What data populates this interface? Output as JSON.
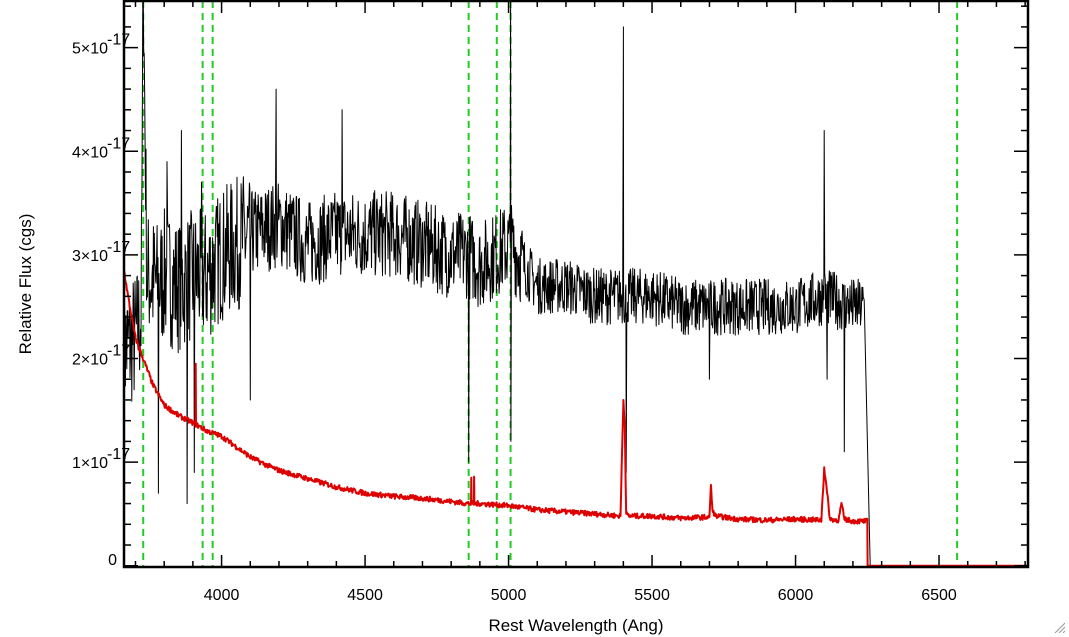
{
  "chart_data": {
    "type": "line",
    "xlabel": "Rest Wavelength (Ang)",
    "ylabel": "Relative Flux (cgs)",
    "xlim": [
      3660,
      6810
    ],
    "ylim": [
      -1.2e-19,
      5.45e-17
    ],
    "x_ticks": [
      {
        "value": 4000,
        "label": "4000"
      },
      {
        "value": 4500,
        "label": "4500"
      },
      {
        "value": 5000,
        "label": "5000"
      },
      {
        "value": 5500,
        "label": "5500"
      },
      {
        "value": 6000,
        "label": "6000"
      },
      {
        "value": 6500,
        "label": "6500"
      }
    ],
    "y_ticks": [
      {
        "value": 0,
        "mantissa": "0",
        "exponent": ""
      },
      {
        "value": 1e-17,
        "mantissa": "1×10",
        "exponent": "-17"
      },
      {
        "value": 2e-17,
        "mantissa": "2×10",
        "exponent": "-17"
      },
      {
        "value": 3e-17,
        "mantissa": "3×10",
        "exponent": "-17"
      },
      {
        "value": 4e-17,
        "mantissa": "4×10",
        "exponent": "-17"
      },
      {
        "value": 5e-17,
        "mantissa": "5×10",
        "exponent": "-17"
      }
    ],
    "x_minor_step": 100,
    "y_minor_step": 2e-18,
    "vertical_lines": {
      "color": "#22cc22",
      "style": "dashed",
      "x": [
        3727,
        3934,
        3969,
        4861,
        4959,
        5007,
        6563
      ]
    },
    "series": [
      {
        "color": "#000000",
        "style": "noisy",
        "x": [
          3660,
          3700,
          3720,
          3727,
          3740,
          3780,
          3800,
          3850,
          3900,
          3950,
          4000,
          4100,
          4200,
          4300,
          4400,
          4500,
          4600,
          4700,
          4800,
          4861,
          4900,
          5007,
          5100,
          5200,
          5300,
          5400,
          5500,
          5600,
          5700,
          5800,
          5900,
          6000,
          6100,
          6200,
          6240,
          6260,
          6810
        ],
        "y": [
          2.1e-17,
          2.2e-17,
          2.4e-17,
          5.6e-17,
          2.8e-17,
          2.7e-17,
          2.8e-17,
          2.7e-17,
          2.8e-17,
          2.8e-17,
          3e-17,
          3.2e-17,
          3.3e-17,
          3.1e-17,
          3.2e-17,
          3.2e-17,
          3.2e-17,
          3.1e-17,
          3e-17,
          3e-17,
          2.9e-17,
          3.1e-17,
          2.7e-17,
          2.7e-17,
          2.6e-17,
          2.6e-17,
          2.6e-17,
          2.5e-17,
          2.5e-17,
          2.5e-17,
          2.5e-17,
          2.5e-17,
          2.6e-17,
          2.5e-17,
          2.5e-17,
          0,
          0
        ],
        "spikes": [
          {
            "x": 3727,
            "y": 5.6e-17
          },
          {
            "x": 3780,
            "y": 7e-18
          },
          {
            "x": 3810,
            "y": 3.9e-17
          },
          {
            "x": 3860,
            "y": 4.2e-17
          },
          {
            "x": 3880,
            "y": 6e-18
          },
          {
            "x": 3905,
            "y": 9e-18
          },
          {
            "x": 3930,
            "y": 3.7e-17
          },
          {
            "x": 4100,
            "y": 1.6e-17
          },
          {
            "x": 4190,
            "y": 4.6e-17
          },
          {
            "x": 4420,
            "y": 4.4e-17
          },
          {
            "x": 4861,
            "y": 1e-17
          },
          {
            "x": 5007,
            "y": 5.6e-17
          },
          {
            "x": 5008,
            "y": 1.2e-17
          },
          {
            "x": 5400,
            "y": 5.2e-17
          },
          {
            "x": 5410,
            "y": 9e-18
          },
          {
            "x": 5700,
            "y": 1.8e-17
          },
          {
            "x": 6100,
            "y": 4.2e-17
          },
          {
            "x": 6110,
            "y": 1.8e-17
          },
          {
            "x": 6170,
            "y": 1.1e-17
          }
        ]
      },
      {
        "color": "#dd0000",
        "style": "smooth",
        "x": [
          3660,
          3680,
          3700,
          3720,
          3740,
          3760,
          3800,
          3850,
          3900,
          3950,
          4000,
          4050,
          4100,
          4150,
          4200,
          4300,
          4400,
          4500,
          4600,
          4700,
          4800,
          4861,
          4900,
          5000,
          5100,
          5200,
          5300,
          5390,
          5400,
          5405,
          5410,
          5420,
          5500,
          5600,
          5700,
          5705,
          5710,
          5720,
          5800,
          5900,
          6000,
          6090,
          6100,
          6110,
          6120,
          6150,
          6160,
          6170,
          6200,
          6250,
          6251,
          6810
        ],
        "y": [
          2.85e-17,
          2.5e-17,
          2.2e-17,
          2.05e-17,
          1.9e-17,
          1.75e-17,
          1.55e-17,
          1.45e-17,
          1.38e-17,
          1.3e-17,
          1.25e-17,
          1.15e-17,
          1.05e-17,
          9.8e-18,
          9.2e-18,
          8.4e-18,
          7.6e-18,
          7e-18,
          6.7e-18,
          6.5e-18,
          6.2e-18,
          6e-18,
          6e-18,
          5.8e-18,
          5.4e-18,
          5.2e-18,
          5e-18,
          4.8e-18,
          1.6e-17,
          1.35e-17,
          5e-18,
          4.8e-18,
          4.8e-18,
          4.6e-18,
          4.7e-18,
          7.8e-18,
          5.5e-18,
          4.8e-18,
          4.5e-18,
          4.4e-18,
          4.5e-18,
          4.4e-18,
          9.5e-18,
          7e-18,
          4.5e-18,
          4.4e-18,
          6e-18,
          4.5e-18,
          4.3e-18,
          4.3e-18,
          0,
          0
        ],
        "spikes": [
          {
            "x": 3910,
            "y": 1.95e-17
          },
          {
            "x": 4870,
            "y": 8.5e-18
          },
          {
            "x": 4880,
            "y": 8.6e-18
          }
        ]
      }
    ]
  }
}
